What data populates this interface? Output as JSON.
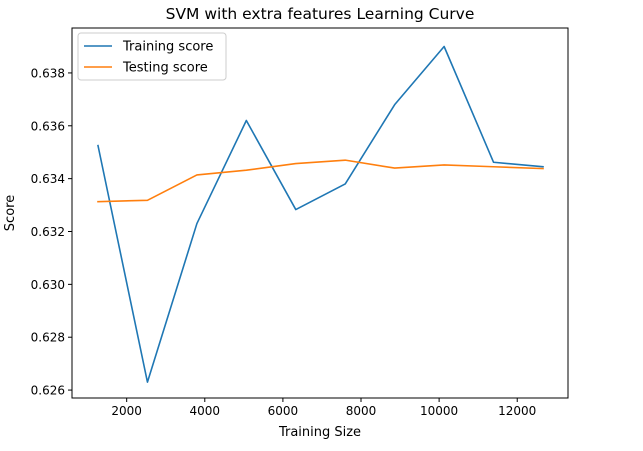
{
  "chart_data": {
    "type": "line",
    "title": "SVM with extra features Learning Curve",
    "xlabel": "Training Size",
    "ylabel": "Score",
    "xlim": [
      600,
      13300
    ],
    "ylim": [
      0.6257,
      0.6397
    ],
    "x_ticks": [
      2000,
      4000,
      6000,
      8000,
      10000,
      12000
    ],
    "x_tick_labels": [
      "2000",
      "4000",
      "6000",
      "8000",
      "10000",
      "12000"
    ],
    "y_ticks": [
      0.626,
      0.628,
      0.63,
      0.632,
      0.634,
      0.636,
      0.638
    ],
    "y_tick_labels": [
      "0.626",
      "0.628",
      "0.630",
      "0.632",
      "0.634",
      "0.636",
      "0.638"
    ],
    "grid": false,
    "legend_position": "top-left",
    "x": [
      1266,
      2532,
      3798,
      5064,
      6330,
      7596,
      8862,
      10128,
      11394,
      12660
    ],
    "series": [
      {
        "name": "Training score",
        "color": "#1f77b4",
        "values": [
          0.63525,
          0.6263,
          0.6323,
          0.6362,
          0.63283,
          0.6338,
          0.6368,
          0.639,
          0.63462,
          0.63445
        ]
      },
      {
        "name": "Testing score",
        "color": "#ff7f0e",
        "values": [
          0.63313,
          0.63318,
          0.63414,
          0.63432,
          0.63457,
          0.6347,
          0.6344,
          0.63452,
          0.63445,
          0.63438
        ]
      }
    ]
  }
}
